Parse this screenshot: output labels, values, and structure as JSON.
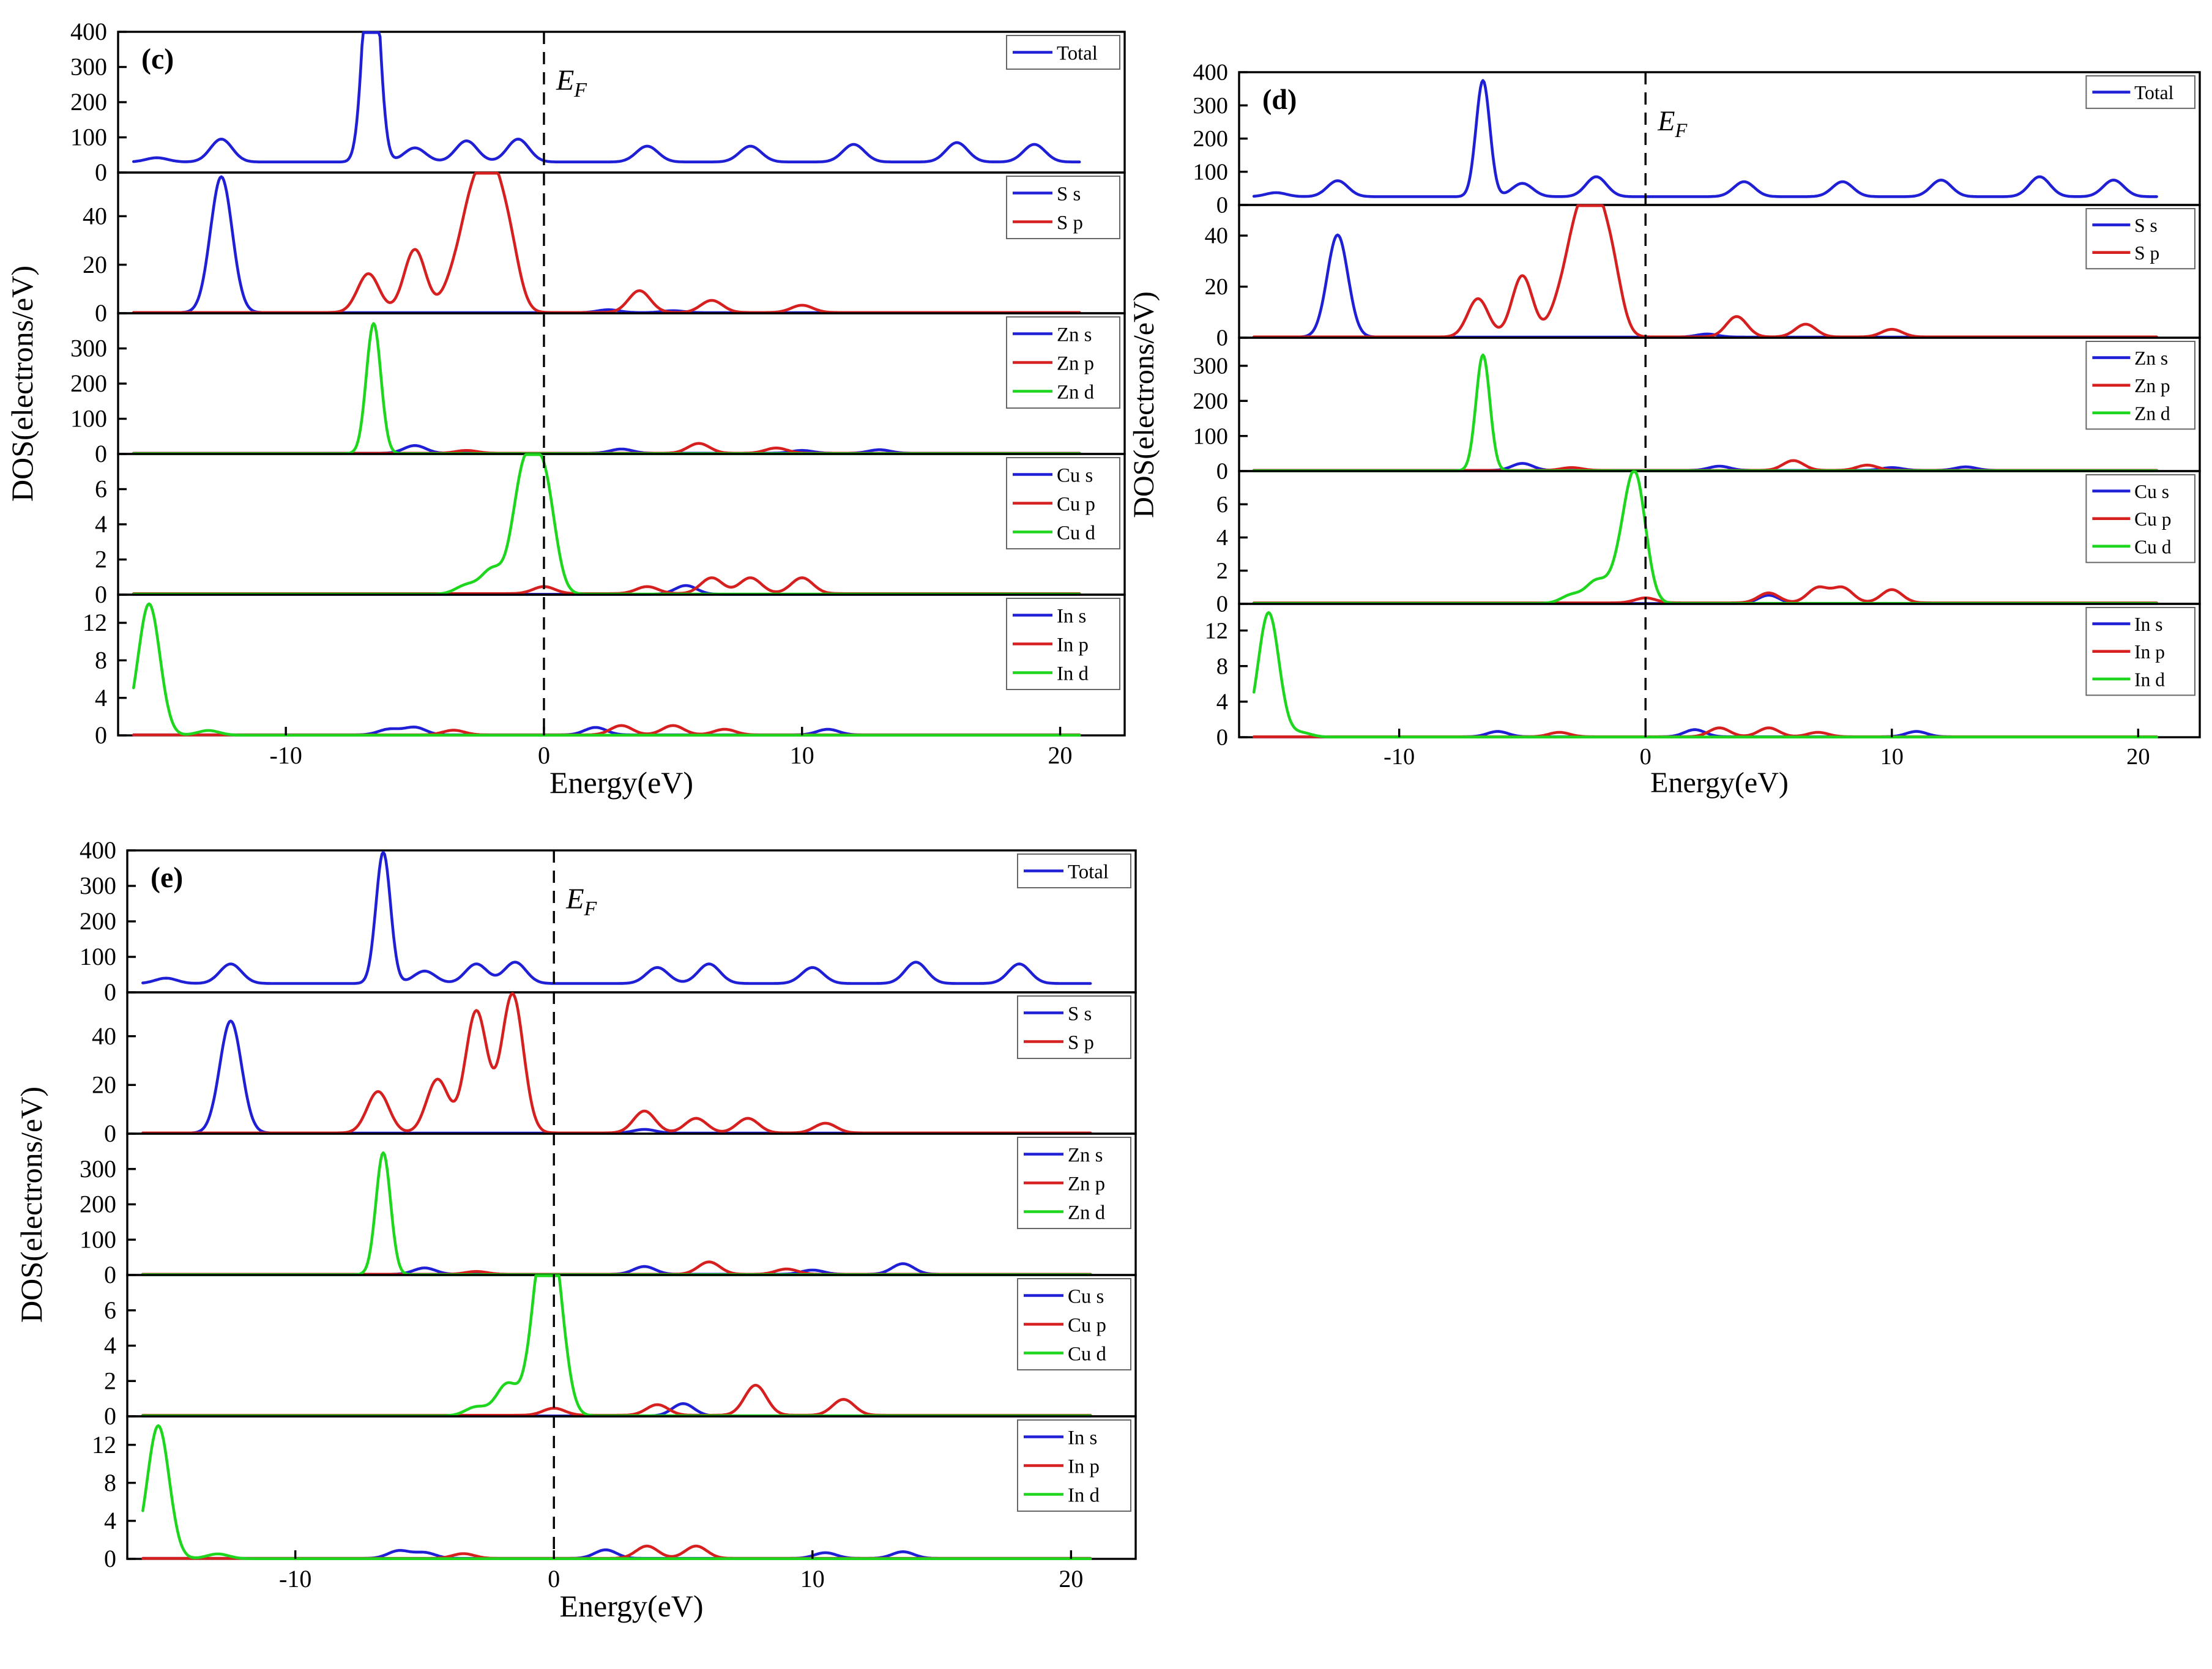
{
  "chart_data": [
    {
      "type": "line",
      "label": "(c)",
      "xlabel": "Energy(eV)",
      "ylabel": "DOS(electrons/eV)",
      "xlim": [
        -16.5,
        22.5
      ],
      "xticks": [
        -10,
        0,
        10,
        20
      ],
      "fermi_label": {
        "main": "E",
        "sub": "F"
      },
      "panels": [
        {
          "ylim": [
            0,
            400
          ],
          "yticks": [
            0,
            100,
            200,
            300,
            400
          ],
          "series": [
            {
              "name": "Total",
              "color": "#1f1fd6",
              "base": 30,
              "x": [
                -15,
                -12.5,
                -10,
                -6.8,
                -6.6,
                -5,
                -3,
                -1,
                1,
                4,
                8,
                12,
                16,
                19,
                20
              ],
              "y": [
                12,
                65,
                0,
                330,
                395,
                40,
                60,
                65,
                0,
                45,
                45,
                50,
                55,
                50,
                0
              ]
            }
          ]
        },
        {
          "ylim": [
            0,
            58
          ],
          "yticks": [
            0,
            20,
            40
          ],
          "series": [
            {
              "name": "S s",
              "color": "#1f1fd6",
              "base": 0.25,
              "x": [
                -12.5,
                2.5,
                5
              ],
              "y": [
                56,
                1.2,
                0.8
              ]
            },
            {
              "name": "S p",
              "color": "#d61f1f",
              "base": 0.3,
              "x": [
                -6.8,
                -5,
                -3.5,
                -2.8,
                -2.1,
                -1.4,
                3.7,
                6.5,
                10
              ],
              "y": [
                16,
                26,
                13,
                38,
                48,
                30,
                9,
                5,
                3
              ]
            }
          ]
        },
        {
          "ylim": [
            0,
            400
          ],
          "yticks": [
            0,
            100,
            200,
            300
          ],
          "series": [
            {
              "name": "Zn s",
              "color": "#1f1fd6",
              "base": 2,
              "x": [
                -5,
                3,
                10,
                13
              ],
              "y": [
                22,
                12,
                8,
                10
              ]
            },
            {
              "name": "Zn p",
              "color": "#d61f1f",
              "base": 2,
              "x": [
                -3,
                6,
                9
              ],
              "y": [
                8,
                28,
                15
              ]
            },
            {
              "name": "Zn d",
              "color": "#1fd61f",
              "base": 1,
              "x": [
                -6.6
              ],
              "y": [
                370
              ]
            }
          ]
        },
        {
          "ylim": [
            0,
            8
          ],
          "yticks": [
            0,
            2,
            4,
            6
          ],
          "series": [
            {
              "name": "Cu s",
              "color": "#1f1fd6",
              "base": 0.02,
              "x": [
                5.5
              ],
              "y": [
                0.5
              ]
            },
            {
              "name": "Cu p",
              "color": "#d61f1f",
              "base": 0.06,
              "x": [
                0,
                4,
                6.5,
                8,
                10
              ],
              "y": [
                0.4,
                0.4,
                0.9,
                0.9,
                0.9
              ]
            },
            {
              "name": "Cu d",
              "color": "#1fd61f",
              "base": 0.03,
              "x": [
                -3,
                -2,
                -0.8,
                0
              ],
              "y": [
                0.5,
                1.4,
                6.6,
                6.4
              ]
            }
          ]
        },
        {
          "ylim": [
            0,
            15
          ],
          "yticks": [
            0,
            4,
            8,
            12
          ],
          "series": [
            {
              "name": "In s",
              "color": "#1f1fd6",
              "base": 0.05,
              "x": [
                -6,
                -5,
                2,
                11
              ],
              "y": [
                0.6,
                0.8,
                0.8,
                0.6
              ]
            },
            {
              "name": "In p",
              "color": "#d61f1f",
              "base": 0.05,
              "x": [
                -3.5,
                3,
                5,
                7
              ],
              "y": [
                0.5,
                1,
                1,
                0.6
              ]
            },
            {
              "name": "In d",
              "color": "#1fd61f",
              "base": 0.02,
              "x": [
                -15.3,
                -13
              ],
              "y": [
                14,
                0.5
              ]
            }
          ]
        }
      ]
    },
    {
      "type": "line",
      "label": "(d)",
      "xlabel": "Energy(eV)",
      "ylabel": "DOS(electrons/eV)",
      "xlim": [
        -16.5,
        22.5
      ],
      "xticks": [
        -10,
        0,
        10,
        20
      ],
      "fermi_label": {
        "main": "E",
        "sub": "F"
      },
      "panels": [
        {
          "ylim": [
            0,
            400
          ],
          "yticks": [
            0,
            100,
            200,
            300,
            400
          ],
          "series": [
            {
              "name": "Total",
              "color": "#1f1fd6",
              "base": 25,
              "x": [
                -15,
                -12.5,
                -10,
                -6.6,
                -5,
                -2,
                1,
                4,
                8,
                12,
                16,
                19,
                20
              ],
              "y": [
                12,
                48,
                0,
                350,
                40,
                60,
                0,
                45,
                45,
                50,
                60,
                50,
                0
              ]
            }
          ]
        },
        {
          "ylim": [
            0,
            52
          ],
          "yticks": [
            0,
            20,
            40
          ],
          "series": [
            {
              "name": "S s",
              "color": "#1f1fd6",
              "base": 0.25,
              "x": [
                -12.5,
                2.5
              ],
              "y": [
                40,
                1.2
              ]
            },
            {
              "name": "S p",
              "color": "#d61f1f",
              "base": 0.3,
              "x": [
                -6.8,
                -5,
                -3.5,
                -2.8,
                -2.1,
                -1.4,
                3.7,
                6.5,
                10
              ],
              "y": [
                15,
                24,
                12,
                36,
                44,
                28,
                8,
                5,
                3
              ]
            }
          ]
        },
        {
          "ylim": [
            0,
            380
          ],
          "yticks": [
            0,
            100,
            200,
            300
          ],
          "series": [
            {
              "name": "Zn s",
              "color": "#1f1fd6",
              "base": 2,
              "x": [
                -5,
                3,
                10,
                13
              ],
              "y": [
                20,
                12,
                8,
                10
              ]
            },
            {
              "name": "Zn p",
              "color": "#d61f1f",
              "base": 2,
              "x": [
                -3,
                6,
                9
              ],
              "y": [
                8,
                28,
                15
              ]
            },
            {
              "name": "Zn d",
              "color": "#1fd61f",
              "base": 1,
              "x": [
                -6.6
              ],
              "y": [
                330
              ]
            }
          ]
        },
        {
          "ylim": [
            0,
            8
          ],
          "yticks": [
            0,
            2,
            4,
            6
          ],
          "series": [
            {
              "name": "Cu s",
              "color": "#1f1fd6",
              "base": 0.02,
              "x": [
                5
              ],
              "y": [
                0.5
              ]
            },
            {
              "name": "Cu p",
              "color": "#d61f1f",
              "base": 0.06,
              "x": [
                0,
                5,
                7,
                8,
                10
              ],
              "y": [
                0.3,
                0.6,
                0.9,
                0.9,
                0.8
              ]
            },
            {
              "name": "Cu d",
              "color": "#1fd61f",
              "base": 0.03,
              "x": [
                -3,
                -2,
                -1,
                -0.4
              ],
              "y": [
                0.5,
                1.3,
                2,
                7.2
              ]
            }
          ]
        },
        {
          "ylim": [
            0,
            15
          ],
          "yticks": [
            0,
            4,
            8,
            12
          ],
          "series": [
            {
              "name": "In s",
              "color": "#1f1fd6",
              "base": 0.05,
              "x": [
                -6,
                2,
                11
              ],
              "y": [
                0.6,
                0.8,
                0.6
              ]
            },
            {
              "name": "In p",
              "color": "#d61f1f",
              "base": 0.05,
              "x": [
                -3.5,
                3,
                5,
                7
              ],
              "y": [
                0.5,
                1,
                1,
                0.5
              ]
            },
            {
              "name": "In d",
              "color": "#1fd61f",
              "base": 0.02,
              "x": [
                -15.3,
                -14
              ],
              "y": [
                14,
                0.5
              ]
            }
          ]
        }
      ]
    },
    {
      "type": "line",
      "label": "(e)",
      "xlabel": "Energy(eV)",
      "ylabel": "DOS(electrons/eV)",
      "xlim": [
        -16.5,
        22.5
      ],
      "xticks": [
        -10,
        0,
        10,
        20
      ],
      "fermi_label": {
        "main": "E",
        "sub": "F"
      },
      "panels": [
        {
          "ylim": [
            0,
            400
          ],
          "yticks": [
            0,
            100,
            200,
            300,
            400
          ],
          "series": [
            {
              "name": "Total",
              "color": "#1f1fd6",
              "base": 25,
              "x": [
                -15,
                -12.5,
                -10,
                -6.6,
                -5,
                -3,
                -1.5,
                1,
                4,
                6,
                10,
                14,
                18,
                20
              ],
              "y": [
                15,
                55,
                0,
                370,
                35,
                55,
                60,
                0,
                45,
                55,
                45,
                60,
                55,
                0
              ]
            }
          ]
        },
        {
          "ylim": [
            0,
            58
          ],
          "yticks": [
            0,
            20,
            40
          ],
          "series": [
            {
              "name": "S s",
              "color": "#1f1fd6",
              "base": 0.25,
              "x": [
                -12.5,
                3.5
              ],
              "y": [
                46,
                1.5
              ]
            },
            {
              "name": "S p",
              "color": "#d61f1f",
              "base": 0.3,
              "x": [
                -6.8,
                -4.5,
                -3,
                -1.6,
                3.5,
                5.5,
                7.5,
                10.5
              ],
              "y": [
                17,
                22,
                50,
                57,
                9,
                6,
                6,
                4
              ]
            }
          ]
        },
        {
          "ylim": [
            0,
            400
          ],
          "yticks": [
            0,
            100,
            200,
            300
          ],
          "series": [
            {
              "name": "Zn s",
              "color": "#1f1fd6",
              "base": 2,
              "x": [
                -5,
                3.5,
                10,
                13.5
              ],
              "y": [
                18,
                22,
                12,
                30
              ]
            },
            {
              "name": "Zn p",
              "color": "#d61f1f",
              "base": 2,
              "x": [
                -3,
                6,
                9
              ],
              "y": [
                8,
                35,
                15
              ]
            },
            {
              "name": "Zn d",
              "color": "#1fd61f",
              "base": 1,
              "x": [
                -6.6
              ],
              "y": [
                345
              ]
            }
          ]
        },
        {
          "ylim": [
            0,
            8
          ],
          "yticks": [
            0,
            2,
            4,
            6
          ],
          "series": [
            {
              "name": "Cu s",
              "color": "#1f1fd6",
              "base": 0.02,
              "x": [
                5
              ],
              "y": [
                0.7
              ]
            },
            {
              "name": "Cu p",
              "color": "#d61f1f",
              "base": 0.06,
              "x": [
                0,
                4,
                7.8,
                11.2
              ],
              "y": [
                0.4,
                0.6,
                1.7,
                0.9
              ]
            },
            {
              "name": "Cu d",
              "color": "#1fd61f",
              "base": 0.03,
              "x": [
                -3,
                -1.8,
                -0.5,
                0
              ],
              "y": [
                0.5,
                1.8,
                7,
                7
              ]
            }
          ]
        },
        {
          "ylim": [
            0,
            15
          ],
          "yticks": [
            0,
            4,
            8,
            12
          ],
          "series": [
            {
              "name": "In s",
              "color": "#1f1fd6",
              "base": 0.05,
              "x": [
                -6,
                -5,
                2,
                10.5,
                13.5
              ],
              "y": [
                0.8,
                0.6,
                0.9,
                0.6,
                0.7
              ]
            },
            {
              "name": "In p",
              "color": "#d61f1f",
              "base": 0.05,
              "x": [
                -3.5,
                3.6,
                5.5
              ],
              "y": [
                0.5,
                1.3,
                1.3
              ]
            },
            {
              "name": "In d",
              "color": "#1fd61f",
              "base": 0.02,
              "x": [
                -15.3,
                -13
              ],
              "y": [
                14,
                0.5
              ]
            }
          ]
        }
      ]
    }
  ]
}
